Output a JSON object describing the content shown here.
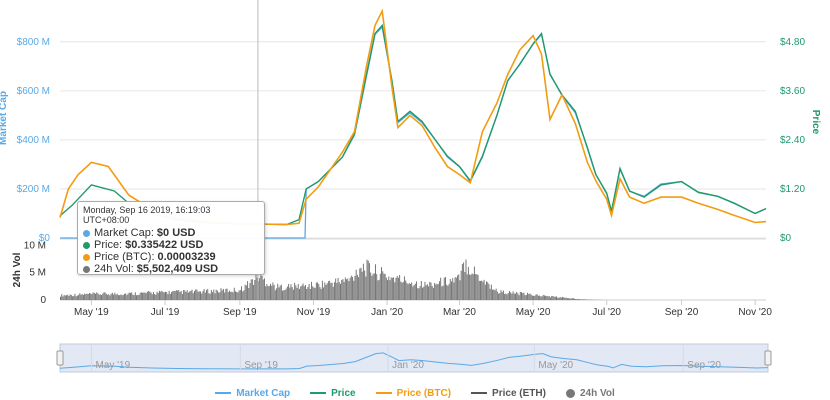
{
  "colors": {
    "market_cap": "#5aa9e6",
    "price": "#1f9a6a",
    "price_btc": "#f39c12",
    "price_eth": "#555555",
    "volume": "#777777",
    "left_axis": "#5aa9e6",
    "right_axis": "#1f9a6a"
  },
  "axes": {
    "left_title": "Market Cap",
    "right_title": "Price",
    "volume_title": "24h Vol",
    "left_ticks": [
      "$0",
      "$200 M",
      "$400 M",
      "$600 M",
      "$800 M"
    ],
    "right_ticks": [
      "$0",
      "$1.20",
      "$2.40",
      "$3.60",
      "$4.80"
    ],
    "volume_ticks": [
      "0",
      "5 M",
      "10 M"
    ],
    "x_ticks": [
      "May '19",
      "Jul '19",
      "Sep '19",
      "Nov '19",
      "Jan '20",
      "Mar '20",
      "May '20",
      "Jul '20",
      "Sep '20",
      "Nov '20"
    ]
  },
  "navigator": {
    "labels": [
      "May '19",
      "Sep '19",
      "Jan '20",
      "May '20",
      "Sep '20"
    ]
  },
  "tooltip": {
    "date": "Monday, Sep 16 2019, 16:19:03 UTC+08:00",
    "rows": [
      {
        "key": "market_cap",
        "label": "Market Cap:",
        "value": "$0 USD"
      },
      {
        "key": "price",
        "label": "Price:",
        "value": "$0.335422 USD"
      },
      {
        "key": "price_btc",
        "label": "Price (BTC):",
        "value": "0.00003239"
      },
      {
        "key": "volume",
        "label": "24h Vol:",
        "value": "$5,502,409 USD"
      }
    ]
  },
  "legend": [
    {
      "key": "market_cap",
      "label": "Market Cap",
      "kind": "line"
    },
    {
      "key": "price",
      "label": "Price",
      "kind": "line"
    },
    {
      "key": "price_btc",
      "label": "Price (BTC)",
      "kind": "line"
    },
    {
      "key": "price_eth",
      "label": "Price (ETH)",
      "kind": "line"
    },
    {
      "key": "volume",
      "label": "24h Vol",
      "kind": "dot"
    }
  ],
  "chart_data": {
    "type": "line",
    "x_unit": "date",
    "x_range": [
      "2019-04-05",
      "2020-11-10"
    ],
    "left_ylim": [
      0,
      950
    ],
    "right_ylim": [
      0,
      5.7
    ],
    "volume_ylim": [
      0,
      11
    ],
    "grid": true,
    "legend_position": "bottom",
    "series": [
      {
        "key": "market_cap",
        "name": "Market Cap",
        "axis": "left",
        "points": [
          [
            "2019-04-05",
            0
          ],
          [
            "2019-10-10",
            0
          ],
          [
            "2019-10-25",
            0
          ],
          [
            "2019-10-26",
            200
          ],
          [
            "2019-11-05",
            230
          ],
          [
            "2019-11-25",
            330
          ],
          [
            "2019-12-05",
            420
          ],
          [
            "2019-12-15",
            660
          ],
          [
            "2019-12-22",
            830
          ],
          [
            "2019-12-28",
            860
          ],
          [
            "2020-01-05",
            640
          ],
          [
            "2020-01-10",
            470
          ],
          [
            "2020-01-20",
            510
          ],
          [
            "2020-01-30",
            470
          ],
          [
            "2020-02-10",
            400
          ],
          [
            "2020-02-20",
            330
          ],
          [
            "2020-03-01",
            290
          ],
          [
            "2020-03-10",
            230
          ],
          [
            "2020-03-20",
            330
          ],
          [
            "2020-04-01",
            500
          ],
          [
            "2020-04-10",
            640
          ],
          [
            "2020-04-20",
            710
          ],
          [
            "2020-05-01",
            790
          ],
          [
            "2020-05-08",
            830
          ],
          [
            "2020-05-15",
            670
          ],
          [
            "2020-05-25",
            580
          ],
          [
            "2020-06-05",
            510
          ],
          [
            "2020-06-15",
            370
          ],
          [
            "2020-06-22",
            260
          ],
          [
            "2020-07-01",
            180
          ],
          [
            "2020-07-05",
            110
          ],
          [
            "2020-07-12",
            280
          ],
          [
            "2020-07-20",
            190
          ],
          [
            "2020-08-01",
            170
          ],
          [
            "2020-08-15",
            220
          ],
          [
            "2020-09-01",
            230
          ],
          [
            "2020-09-15",
            185
          ],
          [
            "2020-10-01",
            170
          ],
          [
            "2020-10-15",
            140
          ],
          [
            "2020-11-01",
            100
          ],
          [
            "2020-11-10",
            120
          ]
        ]
      },
      {
        "key": "price",
        "name": "Price",
        "axis": "right",
        "points": [
          [
            "2019-04-05",
            0.54
          ],
          [
            "2019-04-15",
            0.8
          ],
          [
            "2019-05-01",
            1.3
          ],
          [
            "2019-05-20",
            1.15
          ],
          [
            "2019-06-01",
            0.85
          ],
          [
            "2019-06-20",
            0.6
          ],
          [
            "2019-07-10",
            0.45
          ],
          [
            "2019-08-01",
            0.38
          ],
          [
            "2019-09-01",
            0.34
          ],
          [
            "2019-09-16",
            0.34
          ],
          [
            "2019-10-10",
            0.33
          ],
          [
            "2019-10-20",
            0.45
          ],
          [
            "2019-10-26",
            1.2
          ],
          [
            "2019-11-05",
            1.38
          ],
          [
            "2019-11-25",
            1.98
          ],
          [
            "2019-12-05",
            2.55
          ],
          [
            "2019-12-15",
            4.0
          ],
          [
            "2019-12-22",
            5.0
          ],
          [
            "2019-12-28",
            5.2
          ],
          [
            "2020-01-05",
            3.85
          ],
          [
            "2020-01-10",
            2.85
          ],
          [
            "2020-01-20",
            3.1
          ],
          [
            "2020-01-30",
            2.85
          ],
          [
            "2020-02-10",
            2.4
          ],
          [
            "2020-02-20",
            2.0
          ],
          [
            "2020-03-01",
            1.75
          ],
          [
            "2020-03-10",
            1.4
          ],
          [
            "2020-03-20",
            2.0
          ],
          [
            "2020-04-01",
            3.0
          ],
          [
            "2020-04-10",
            3.85
          ],
          [
            "2020-04-20",
            4.25
          ],
          [
            "2020-05-01",
            4.75
          ],
          [
            "2020-05-08",
            5.0
          ],
          [
            "2020-05-15",
            4.0
          ],
          [
            "2020-05-25",
            3.5
          ],
          [
            "2020-06-05",
            3.1
          ],
          [
            "2020-06-15",
            2.2
          ],
          [
            "2020-06-22",
            1.55
          ],
          [
            "2020-07-01",
            1.1
          ],
          [
            "2020-07-05",
            0.65
          ],
          [
            "2020-07-12",
            1.7
          ],
          [
            "2020-07-20",
            1.15
          ],
          [
            "2020-08-01",
            1.0
          ],
          [
            "2020-08-15",
            1.3
          ],
          [
            "2020-09-01",
            1.38
          ],
          [
            "2020-09-15",
            1.12
          ],
          [
            "2020-10-01",
            1.02
          ],
          [
            "2020-10-15",
            0.85
          ],
          [
            "2020-11-01",
            0.6
          ],
          [
            "2020-11-10",
            0.72
          ]
        ]
      },
      {
        "key": "price_btc",
        "name": "Price (BTC)",
        "axis": "right",
        "points": [
          [
            "2019-04-05",
            0.5
          ],
          [
            "2019-04-12",
            1.2
          ],
          [
            "2019-04-20",
            1.55
          ],
          [
            "2019-05-01",
            1.85
          ],
          [
            "2019-05-15",
            1.75
          ],
          [
            "2019-06-01",
            1.05
          ],
          [
            "2019-06-20",
            0.7
          ],
          [
            "2019-07-10",
            0.5
          ],
          [
            "2019-08-01",
            0.4
          ],
          [
            "2019-09-01",
            0.35
          ],
          [
            "2019-10-10",
            0.33
          ],
          [
            "2019-10-20",
            0.36
          ],
          [
            "2019-10-26",
            0.95
          ],
          [
            "2019-11-05",
            1.25
          ],
          [
            "2019-11-25",
            2.1
          ],
          [
            "2019-12-05",
            2.6
          ],
          [
            "2019-12-15",
            4.2
          ],
          [
            "2019-12-22",
            5.2
          ],
          [
            "2019-12-28",
            5.55
          ],
          [
            "2020-01-05",
            3.7
          ],
          [
            "2020-01-10",
            2.7
          ],
          [
            "2020-01-20",
            3.0
          ],
          [
            "2020-01-30",
            2.75
          ],
          [
            "2020-02-10",
            2.2
          ],
          [
            "2020-02-20",
            1.75
          ],
          [
            "2020-03-01",
            1.55
          ],
          [
            "2020-03-10",
            1.35
          ],
          [
            "2020-03-20",
            2.6
          ],
          [
            "2020-04-01",
            3.3
          ],
          [
            "2020-04-10",
            4.0
          ],
          [
            "2020-04-20",
            4.6
          ],
          [
            "2020-05-01",
            4.95
          ],
          [
            "2020-05-08",
            4.5
          ],
          [
            "2020-05-15",
            2.9
          ],
          [
            "2020-05-25",
            3.5
          ],
          [
            "2020-06-05",
            2.8
          ],
          [
            "2020-06-15",
            1.85
          ],
          [
            "2020-06-22",
            1.4
          ],
          [
            "2020-07-01",
            0.95
          ],
          [
            "2020-07-05",
            0.55
          ],
          [
            "2020-07-12",
            1.45
          ],
          [
            "2020-07-20",
            1.0
          ],
          [
            "2020-08-01",
            0.85
          ],
          [
            "2020-08-15",
            1.0
          ],
          [
            "2020-09-01",
            1.0
          ],
          [
            "2020-09-15",
            0.85
          ],
          [
            "2020-10-01",
            0.7
          ],
          [
            "2020-10-15",
            0.55
          ],
          [
            "2020-11-01",
            0.38
          ],
          [
            "2020-11-10",
            0.4
          ]
        ]
      }
    ],
    "volume": {
      "key": "volume",
      "name": "24h Vol",
      "axis": "volume",
      "points": [
        [
          "2019-04-05",
          1.1
        ],
        [
          "2019-05-01",
          1.4
        ],
        [
          "2019-06-01",
          1.5
        ],
        [
          "2019-07-01",
          1.8
        ],
        [
          "2019-08-01",
          2.0
        ],
        [
          "2019-09-01",
          2.4
        ],
        [
          "2019-09-16",
          5.5
        ],
        [
          "2019-10-01",
          3.0
        ],
        [
          "2019-11-01",
          3.4
        ],
        [
          "2019-12-01",
          4.8
        ],
        [
          "2019-12-10",
          8.0
        ],
        [
          "2020-01-01",
          5.5
        ],
        [
          "2020-02-01",
          3.5
        ],
        [
          "2020-03-01",
          5.0
        ],
        [
          "2020-03-05",
          9.0
        ],
        [
          "2020-03-15",
          6.0
        ],
        [
          "2020-04-01",
          2.0
        ],
        [
          "2020-05-01",
          1.2
        ],
        [
          "2020-06-01",
          0.4
        ],
        [
          "2020-06-15",
          0.1
        ],
        [
          "2020-07-01",
          0
        ]
      ]
    }
  }
}
